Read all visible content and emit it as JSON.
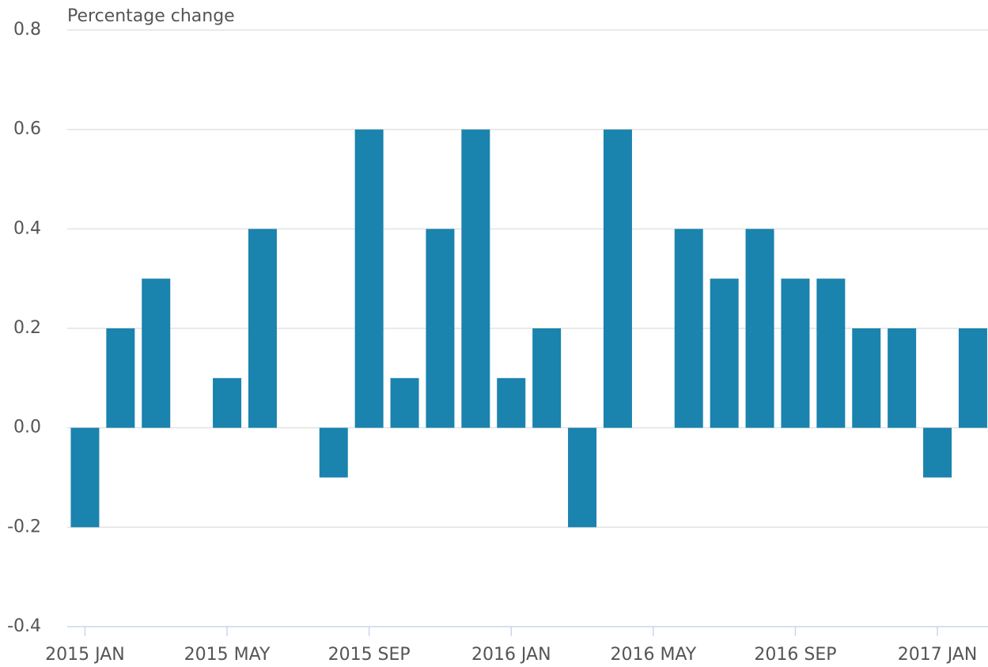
{
  "chart_data": {
    "type": "bar",
    "y_axis_label": "Percentage change",
    "categories": [
      "2015 JAN",
      null,
      null,
      null,
      "2015 MAY",
      null,
      null,
      null,
      "2015 SEP",
      null,
      null,
      null,
      "2016 JAN",
      null,
      null,
      null,
      "2016 MAY",
      null,
      null,
      null,
      "2016 SEP",
      null,
      null,
      null,
      "2017 JAN",
      null
    ],
    "values": [
      -0.2,
      0.2,
      0.3,
      0.0,
      0.1,
      0.4,
      0.0,
      -0.1,
      0.6,
      0.1,
      0.4,
      0.6,
      0.1,
      0.2,
      -0.2,
      0.6,
      0.0,
      0.4,
      0.3,
      0.4,
      0.3,
      0.3,
      0.2,
      0.2,
      -0.1,
      0.2
    ],
    "color": "#1a83ae",
    "ylim": [
      -0.4,
      0.8
    ],
    "yticks": [
      -0.4,
      -0.2,
      {
        "value": 0,
        "label": "0.0"
      },
      0.2,
      0.4,
      0.6,
      0.8
    ],
    "grid": true
  }
}
